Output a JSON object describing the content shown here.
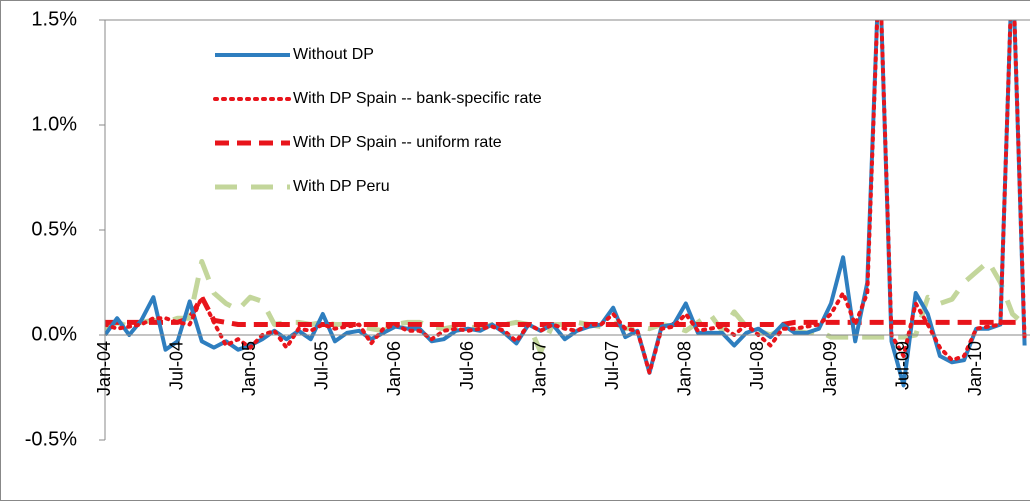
{
  "chart_data": {
    "type": "line",
    "categories": [
      "Jan-04",
      null,
      null,
      null,
      null,
      null,
      "Jul-04",
      null,
      null,
      null,
      null,
      null,
      "Jan-05",
      null,
      null,
      null,
      null,
      null,
      "Jul-05",
      null,
      null,
      null,
      null,
      null,
      "Jan-06",
      null,
      null,
      null,
      null,
      null,
      "Jul-06",
      null,
      null,
      null,
      null,
      null,
      "Jan-07",
      null,
      null,
      null,
      null,
      null,
      "Jul-07",
      null,
      null,
      null,
      null,
      null,
      "Jan-08",
      null,
      null,
      null,
      null,
      null,
      "Jul-08",
      null,
      null,
      null,
      null,
      null,
      "Jan-09",
      null,
      null,
      null,
      null,
      null,
      "Jul-09",
      null,
      null,
      null,
      null,
      null,
      "Jan-10",
      null,
      null,
      null,
      null
    ],
    "series": [
      {
        "name": "Without DP",
        "color": "#2e7ebf",
        "style": "solid",
        "values": [
          0,
          0.08,
          0,
          0.07,
          0.18,
          -0.07,
          -0.03,
          0.16,
          -0.03,
          -0.06,
          -0.03,
          -0.07,
          -0.05,
          -0.02,
          0.02,
          -0.02,
          0.02,
          -0.02,
          0.1,
          -0.03,
          0.01,
          0.02,
          -0.02,
          0.01,
          0.04,
          0.03,
          0.03,
          -0.03,
          -0.02,
          0.02,
          0.03,
          0.02,
          0.05,
          0.01,
          -0.04,
          0.05,
          0.02,
          0.05,
          -0.02,
          0.02,
          0.04,
          0.05,
          0.13,
          -0.01,
          0.02,
          -0.18,
          0.04,
          0.05,
          0.15,
          0.01,
          0.01,
          0.01,
          -0.05,
          0.01,
          0.03,
          -0.01,
          0.05,
          0.01,
          0.01,
          0.03,
          0.15,
          0.37,
          -0.03,
          0.25,
          1.8,
          -0.03,
          -0.24,
          0.2,
          0.1,
          -0.1,
          -0.13,
          -0.12,
          0.03,
          0.03,
          0.05,
          1.8,
          -0.05
        ]
      },
      {
        "name": "With DP Spain -- bank-specific rate",
        "color": "#e8141b",
        "style": "dotted",
        "values": [
          0.05,
          0.03,
          0.04,
          0.05,
          0.08,
          0.08,
          0.06,
          0.05,
          0.18,
          0.06,
          -0.05,
          -0.02,
          -0.06,
          0,
          0.02,
          -0.06,
          0.03,
          0.02,
          0.05,
          0.03,
          0.04,
          0.05,
          -0.04,
          0.03,
          0.05,
          0.02,
          0.02,
          -0.02,
          0.02,
          0.03,
          0.02,
          0.03,
          0.04,
          0.02,
          -0.03,
          0.05,
          0.02,
          0.05,
          0.03,
          0.02,
          0.05,
          0.05,
          0.1,
          0.03,
          0.02,
          -0.18,
          0.03,
          0.04,
          0.1,
          0.02,
          0.03,
          0.04,
          0,
          0.05,
          0,
          -0.05,
          0.03,
          0.03,
          0.04,
          0.05,
          0.1,
          0.2,
          0.05,
          0.2,
          1.8,
          0,
          -0.1,
          0.15,
          0.05,
          -0.06,
          -0.12,
          -0.1,
          0.03,
          0.04,
          0.05,
          1.8,
          -0.02
        ]
      },
      {
        "name": "With DP Spain -- uniform rate",
        "color": "#e8141b",
        "style": "dashed",
        "values": [
          0.06,
          0.06,
          0.06,
          0.06,
          0.06,
          0.06,
          0.06,
          0.08,
          0.18,
          0.07,
          0.06,
          0.05,
          0.05,
          0.05,
          0.05,
          0.05,
          0.05,
          0.05,
          0.05,
          0.05,
          0.05,
          0.05,
          0.05,
          0.05,
          0.05,
          0.05,
          0.05,
          0.05,
          0.05,
          0.05,
          0.05,
          0.05,
          0.05,
          0.05,
          0.05,
          0.05,
          0.05,
          0.05,
          0.05,
          0.05,
          0.05,
          0.05,
          0.05,
          0.05,
          0.05,
          0.05,
          0.05,
          0.05,
          0.05,
          0.05,
          0.05,
          0.05,
          0.05,
          0.05,
          0.05,
          0.05,
          0.05,
          0.06,
          0.06,
          0.06,
          0.06,
          0.06,
          0.06,
          0.06,
          0.06,
          0.06,
          0.06,
          0.06,
          0.06,
          0.06,
          0.06,
          0.06,
          0.06,
          0.06,
          0.06,
          0.06,
          0.06
        ]
      },
      {
        "name": "With DP Peru",
        "color": "#c3d69b",
        "style": "longdash",
        "values": [
          0.03,
          0.06,
          0.04,
          0.06,
          0.07,
          0.06,
          0.08,
          0.08,
          0.35,
          0.2,
          0.15,
          0.12,
          0.18,
          0.16,
          0.05,
          0.06,
          0.06,
          0.05,
          0.06,
          0.05,
          0.05,
          0.04,
          0.03,
          0.02,
          0.05,
          0.06,
          0.06,
          0.04,
          0.03,
          0.04,
          0.04,
          0.03,
          0.05,
          0.05,
          0.06,
          0.05,
          -0.08,
          0.05,
          0.05,
          0.06,
          0.05,
          0.04,
          0.06,
          0.03,
          0.04,
          0.03,
          0.05,
          0.04,
          0.02,
          0.06,
          0.1,
          0.02,
          0.11,
          0.04,
          0.02,
          0,
          0.03,
          0.02,
          0.01,
          0.02,
          -0.01,
          -0.01,
          -0.01,
          -0.01,
          -0.01,
          -0.01,
          -0.01,
          0,
          0.18,
          0.15,
          0.17,
          0.25,
          0.3,
          0.35,
          0.25,
          0.1,
          0.05
        ]
      }
    ],
    "ylim": [
      -0.5,
      1.5
    ],
    "yticks": [
      {
        "value": -0.5,
        "label": "-0.5%"
      },
      {
        "value": 0,
        "label": "0.0%"
      },
      {
        "value": 0.5,
        "label": "0.5%"
      },
      {
        "value": 1,
        "label": "1.0%"
      },
      {
        "value": 1.5,
        "label": "1.5%"
      }
    ],
    "legend": "top-left"
  }
}
